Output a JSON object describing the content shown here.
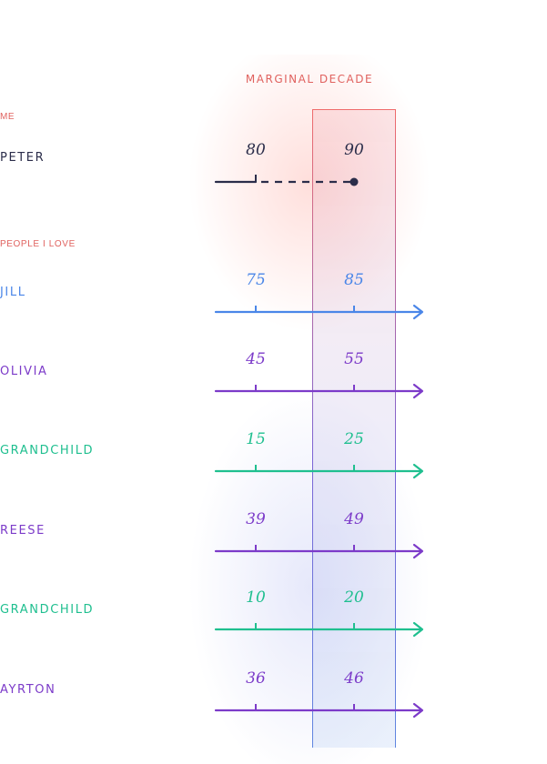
{
  "band_label": "MARGINAL DECADE",
  "me_label": "ME",
  "people_label": "PEOPLE I LOVE",
  "rows": [
    {
      "name": "PETER",
      "tick1": "80",
      "tick2": "90",
      "color": "#2b2d4a",
      "style": "dashed"
    },
    {
      "name": "JILL",
      "tick1": "75",
      "tick2": "85",
      "color": "#4a86e8",
      "style": "arrow"
    },
    {
      "name": "OLIVIA",
      "tick1": "45",
      "tick2": "55",
      "color": "#7c3bc9",
      "style": "arrow"
    },
    {
      "name": "GRANDCHILD",
      "tick1": "15",
      "tick2": "25",
      "color": "#1fbf8f",
      "style": "arrow"
    },
    {
      "name": "REESE",
      "tick1": "39",
      "tick2": "49",
      "color": "#7c3bc9",
      "style": "arrow"
    },
    {
      "name": "GRANDCHILD",
      "tick1": "10",
      "tick2": "20",
      "color": "#1fbf8f",
      "style": "arrow"
    },
    {
      "name": "AYRTON",
      "tick1": "36",
      "tick2": "46",
      "color": "#7c3bc9",
      "style": "arrow"
    }
  ]
}
